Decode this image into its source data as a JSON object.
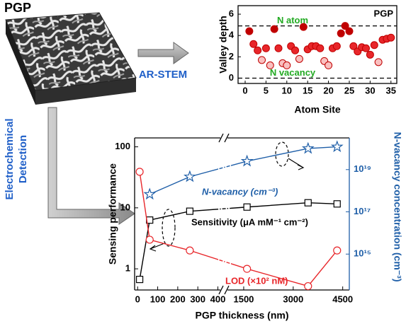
{
  "figure": {
    "title": "PGP",
    "stem_label": "AR-STEM",
    "detection_label": [
      "Electrochemical",
      "Detection"
    ]
  },
  "chart_data": [
    {
      "type": "scatter",
      "corner_label": "PGP",
      "xlabel": "Atom Site",
      "ylabel": "Valley depth",
      "x": [
        1,
        2,
        3,
        4,
        5,
        6,
        7,
        8,
        9,
        10,
        11,
        12,
        13,
        14,
        15,
        16,
        17,
        18,
        19,
        20,
        21,
        22,
        23,
        24,
        25,
        26,
        27,
        28,
        29,
        30,
        31,
        32,
        33,
        34,
        35
      ],
      "values": [
        4.4,
        3.2,
        2.6,
        1.7,
        2.8,
        1.2,
        4.6,
        2.8,
        1.4,
        1.2,
        3.0,
        2.6,
        1.8,
        4.8,
        2.7,
        3.0,
        3.0,
        2.8,
        1.6,
        1.2,
        2.8,
        3.0,
        4.2,
        4.9,
        4.4,
        3.0,
        2.5,
        2.9,
        2.8,
        2.2,
        3.1,
        1.5,
        3.6,
        3.7,
        3.8
      ],
      "point_colors": [
        "#c00000",
        "#e8262a",
        "#e8262a",
        "#f9c0c0",
        "#e8262a",
        "#f9c0c0",
        "#c00000",
        "#e8262a",
        "#f9c0c0",
        "#f9c0c0",
        "#e8262a",
        "#e8262a",
        "#f9c0c0",
        "#c00000",
        "#e8262a",
        "#e8262a",
        "#e8262a",
        "#e8262a",
        "#f9c0c0",
        "#f9c0c0",
        "#e8262a",
        "#e8262a",
        "#c00000",
        "#c00000",
        "#c00000",
        "#e8262a",
        "#e8262a",
        "#e8262a",
        "#e8262a",
        "#e8262a",
        "#e8262a",
        "#f9c0c0",
        "#e8262a",
        "#e8262a",
        "#e8262a"
      ],
      "xlim": [
        -1.7,
        36.4
      ],
      "xticks": [
        0,
        5,
        10,
        15,
        20,
        25,
        30,
        35
      ],
      "ylim": [
        -0.5,
        6.8
      ],
      "yticks": [
        0,
        2,
        4,
        6
      ],
      "reference_lines": [
        {
          "value": 4.9,
          "label": "N atom"
        },
        {
          "value": 0,
          "label": "N vacancy"
        }
      ]
    },
    {
      "type": "line",
      "xlabel": "PGP thickness (nm)",
      "ylabel": "Sensing performance",
      "y2label": "N-vacancy concentration (cm⁻³)",
      "x": [
        10,
        60,
        260,
        1600,
        3450,
        4330
      ],
      "x_segments": [
        {
          "xlim": [
            -15,
            430
          ],
          "xticks": [
            0,
            100,
            200,
            300,
            400
          ]
        },
        {
          "xlim": [
            900,
            4700
          ],
          "xticks": [
            1500,
            3000,
            4500
          ]
        }
      ],
      "log_y": true,
      "ylim": [
        0.45,
        140
      ],
      "yticks": [
        1,
        10,
        100
      ],
      "log_y2": true,
      "y2lim": [
        20000000000000.0,
        3.16e+20
      ],
      "y2ticks": [
        {
          "value": 1000000000000000.0,
          "label": "10¹⁵"
        },
        {
          "value": 1e+17,
          "label": "10¹⁷"
        },
        {
          "value": 1e+19,
          "label": "10¹⁹"
        }
      ],
      "series": [
        {
          "name": "N-vacancy (cm⁻³)",
          "color": "#1f5fa8",
          "marker": "star",
          "axis": "y2",
          "values": [
            null,
            6.8e+17,
            4.6e+18,
            2.5e+19,
            1e+20,
            1.2e+20
          ]
        },
        {
          "name": "Sensitivity (μA mM⁻¹ cm⁻²)",
          "color": "#000000",
          "marker": "square",
          "values": [
            0.67,
            6.3,
            8.8,
            10.3,
            12.1,
            11.6
          ]
        },
        {
          "name": "LOD (×10² nM)",
          "color": "#e8262a",
          "marker": "circle",
          "values": [
            39,
            3.0,
            2.0,
            1.0,
            0.52,
            2.0
          ]
        }
      ]
    }
  ]
}
